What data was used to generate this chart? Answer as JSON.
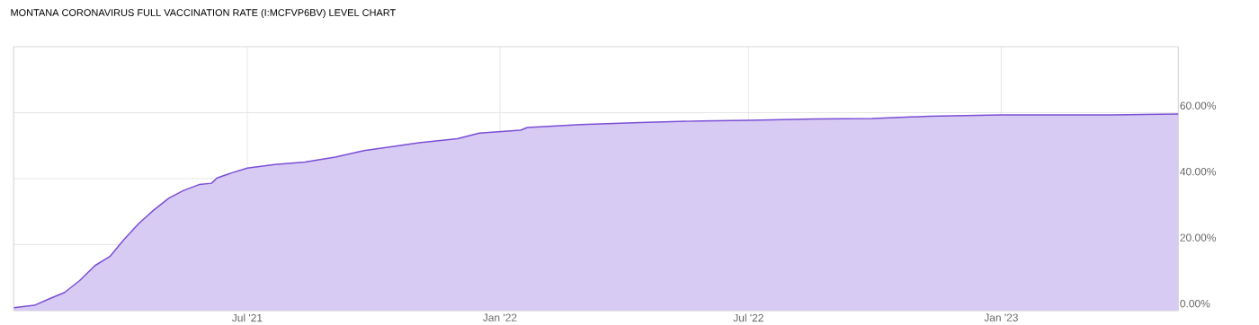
{
  "chart_data": {
    "type": "area",
    "title": "MONTANA CORONAVIRUS FULL VACCINATION RATE (I:MCFVP6BV) LEVEL CHART",
    "x": [
      "2021-01-12",
      "2021-01-27",
      "2021-02-07",
      "2021-02-18",
      "2021-03-01",
      "2021-03-12",
      "2021-03-23",
      "2021-04-02",
      "2021-04-13",
      "2021-04-24",
      "2021-05-05",
      "2021-05-16",
      "2021-05-27",
      "2021-06-05",
      "2021-06-09",
      "2021-06-20",
      "2021-07-01",
      "2021-07-21",
      "2021-08-12",
      "2021-09-03",
      "2021-09-24",
      "2021-10-16",
      "2021-11-03",
      "2021-12-01",
      "2021-12-17",
      "2022-01-16",
      "2022-01-21",
      "2022-03-01",
      "2022-04-13",
      "2022-05-27",
      "2022-07-01",
      "2022-08-18",
      "2022-09-29",
      "2022-11-09",
      "2023-01-01",
      "2023-03-22",
      "2023-05-10"
    ],
    "values": [
      0.9,
      1.6,
      3.6,
      5.5,
      9.1,
      13.6,
      16.4,
      21.4,
      26.4,
      30.5,
      34.1,
      36.5,
      38.2,
      38.6,
      40.2,
      41.8,
      43.2,
      44.3,
      45.0,
      46.5,
      48.5,
      49.8,
      50.9,
      52.1,
      53.8,
      54.7,
      55.5,
      56.4,
      57.0,
      57.5,
      57.7,
      58.1,
      58.2,
      58.9,
      59.3,
      59.3,
      59.6
    ],
    "color": "#7b4fd6",
    "xlim": [
      "2021-01-12",
      "2023-05-10"
    ],
    "xticks": [
      {
        "value": "2021-07-01",
        "label": "Jul '21"
      },
      {
        "value": "2022-01-01",
        "label": "Jan '22"
      },
      {
        "value": "2022-07-01",
        "label": "Jul '22"
      },
      {
        "value": "2023-01-01",
        "label": "Jan '23"
      }
    ],
    "ylim": [
      0,
      80
    ],
    "yticks": [
      {
        "value": 0,
        "label": "0.00%"
      },
      {
        "value": 20,
        "label": "20.00%"
      },
      {
        "value": 40,
        "label": "40.00%"
      },
      {
        "value": 60,
        "label": "60.00%"
      }
    ],
    "grid": true
  }
}
